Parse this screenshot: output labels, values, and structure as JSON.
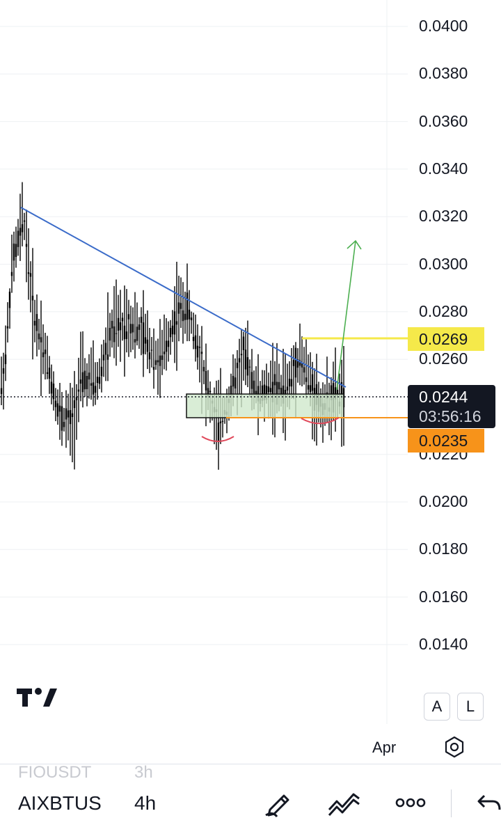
{
  "chart": {
    "symbol": "AIXBTUSDT",
    "timeframe": "4h",
    "price_axis": [
      "0.0400",
      "0.0380",
      "0.0360",
      "0.0340",
      "0.0320",
      "0.0300",
      "0.0280",
      "0.0260",
      "0.0220",
      "0.0200",
      "0.0180",
      "0.0160",
      "0.0140"
    ],
    "current_price": "0.0244",
    "countdown": "03:56:16",
    "resistance_label": "0.0269",
    "support_label": "0.0235",
    "time_axis_label": "Apr",
    "colors": {
      "trendline": "#3a6bc9",
      "resistance": "#f5e94a",
      "support": "#f7931a",
      "arrow": "#4caf50",
      "zone": "#cfe8cc",
      "arc": "#e0485a",
      "candles": "#000000"
    }
  },
  "chart_data": {
    "type": "candlestick",
    "ylim": [
      0.0125,
      0.041
    ],
    "current_price": 0.0244,
    "resistance": 0.0269,
    "support": 0.0235,
    "trendline": {
      "from": 0.0323,
      "to": 0.0248
    },
    "target_arrow": {
      "from": 0.0247,
      "to": 0.031
    }
  },
  "scale_buttons": {
    "auto": "A",
    "log": "L"
  },
  "bottom_bar": {
    "prev_symbol": "FIOUSDT",
    "prev_interval": "3h",
    "symbol": "AIXBTUS",
    "interval": "4h"
  },
  "icons": [
    "tradingview-logo-icon",
    "settings-hexagon-icon",
    "pencil-icon",
    "drawing-tools-icon",
    "more-dots-icon",
    "undo-arrow-icon"
  ]
}
